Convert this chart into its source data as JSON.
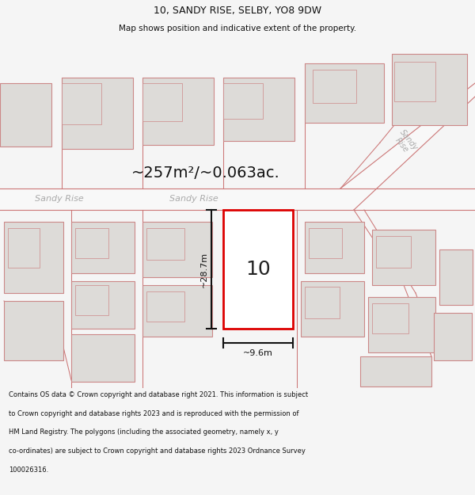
{
  "title": "10, SANDY RISE, SELBY, YO8 9DW",
  "subtitle": "Map shows position and indicative extent of the property.",
  "area_text": "~257m²/~0.063ac.",
  "width_label": "~9.6m",
  "height_label": "~28.7m",
  "number_label": "10",
  "footer_lines": [
    "Contains OS data © Crown copyright and database right 2021. This information is subject",
    "to Crown copyright and database rights 2023 and is reproduced with the permission of",
    "HM Land Registry. The polygons (including the associated geometry, namely x, y",
    "co-ordinates) are subject to Crown copyright and database rights 2023 Ordnance Survey",
    "100026316."
  ],
  "bg_color": "#f5f5f5",
  "map_bg": "#ededeb",
  "building_fill": "#dddbd8",
  "building_edge": "#cc8888",
  "road_fill": "#f8f8f8",
  "road_stripe": "#cc7777",
  "highlight_fill": "#ffffff",
  "highlight_edge": "#dd0000",
  "highlight_lw": 2.0,
  "measure_color": "#111111",
  "dim_lw": 1.5,
  "title_fontsize": 9,
  "subtitle_fontsize": 7.5,
  "area_fontsize": 14,
  "label_fontsize": 8,
  "number_fontsize": 18,
  "footer_fontsize": 6.0,
  "road_label_color": "#aaaaaa",
  "road_label_fontsize": 8
}
